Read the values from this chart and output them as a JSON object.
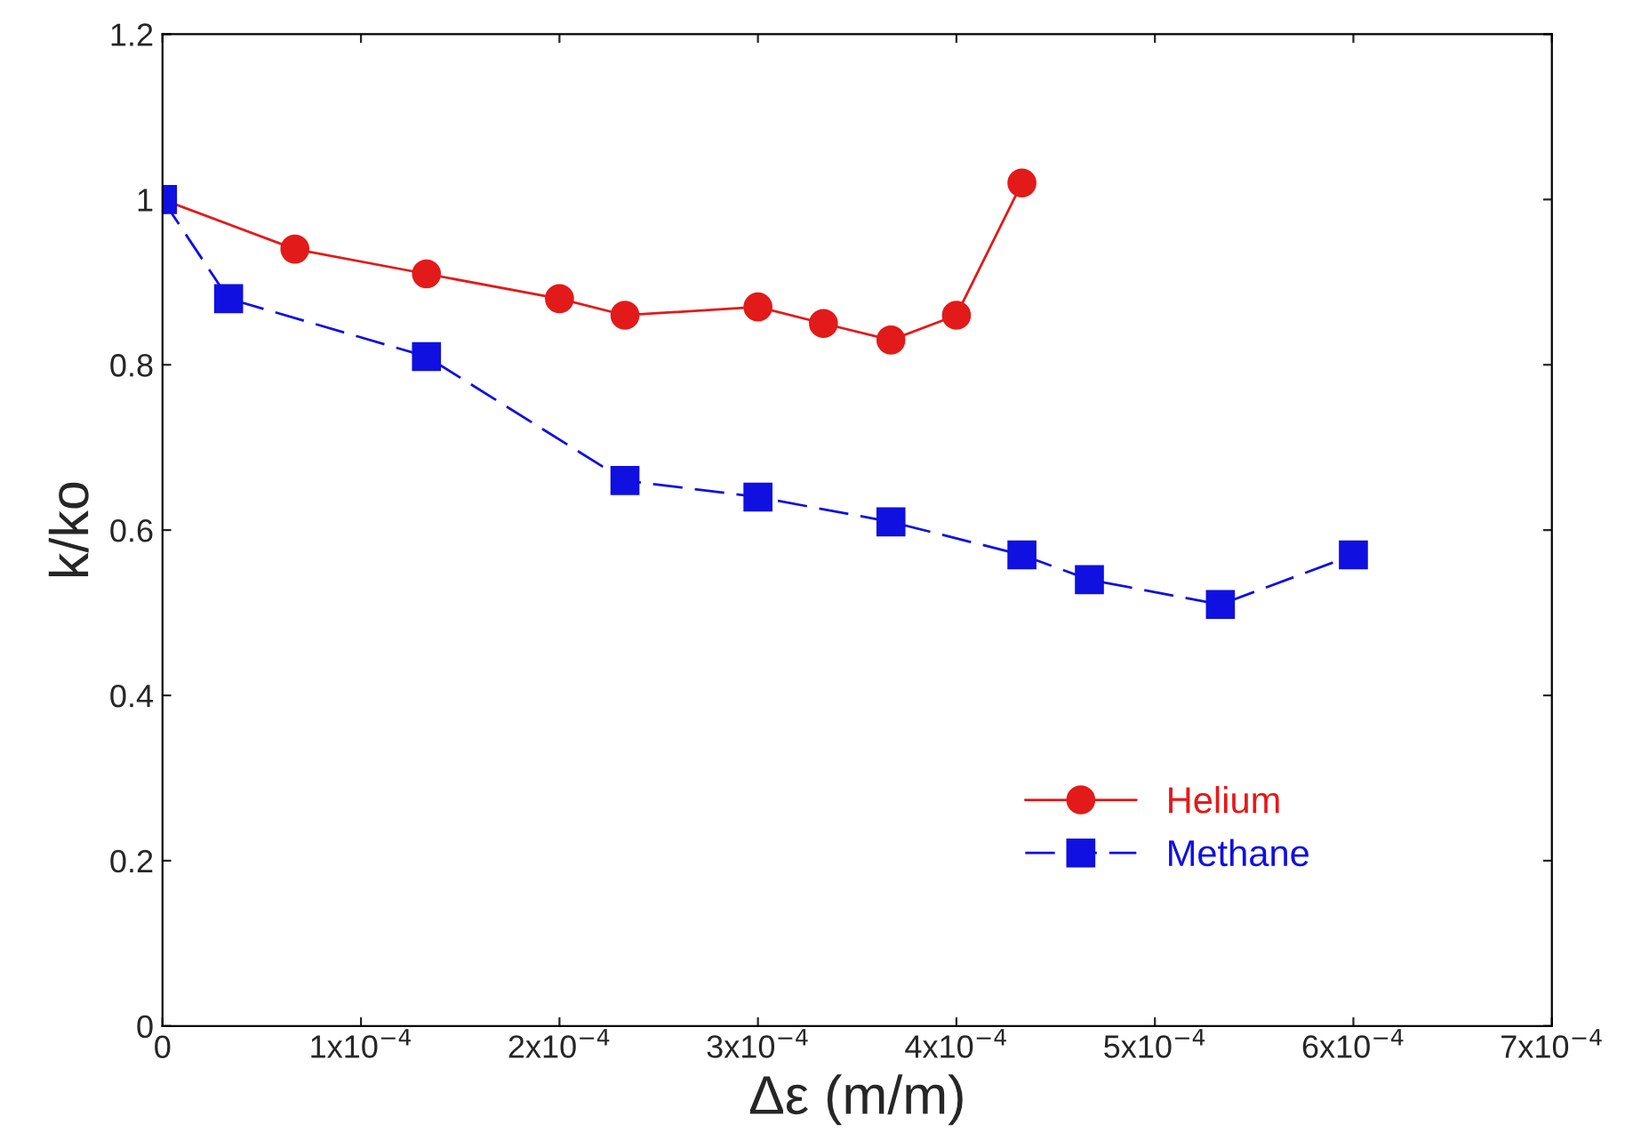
{
  "chart_data": {
    "type": "line",
    "xlabel": "Δε (m/m)",
    "ylabel": "k/ko",
    "xlim": [
      0,
      0.0007
    ],
    "ylim": [
      0,
      1.2
    ],
    "xticks": [
      0,
      {
        "value": 0.0001,
        "label": "1x10$^{−4}$"
      },
      {
        "value": 0.0002,
        "label": "2x10$^{−4}$"
      },
      {
        "value": 0.0003,
        "label": "3x10$^{−4}$"
      },
      {
        "value": 0.0004,
        "label": "4x10$^{−4}$"
      },
      {
        "value": 0.0005,
        "label": "5x10$^{−4}$"
      },
      {
        "value": 0.0006,
        "label": "6x10$^{−4}$"
      },
      {
        "value": 0.0007,
        "label": "7x10$^{−4}$"
      }
    ],
    "yticks": [
      0,
      0.2,
      0.4,
      0.6,
      0.8,
      1,
      1.2
    ],
    "grid": false,
    "legend": "bottom right",
    "series": [
      {
        "name": "Helium",
        "color": "#e31a1a",
        "marker": "circle",
        "line_style": "solid",
        "x": [
          0,
          6.67e-05,
          0.000133,
          0.0002,
          0.000233,
          0.0003,
          0.000333,
          0.000367,
          0.0004,
          0.000433
        ],
        "values": [
          1.0,
          0.94,
          0.91,
          0.88,
          0.86,
          0.87,
          0.85,
          0.83,
          0.86,
          1.02
        ]
      },
      {
        "name": "Methane",
        "color": "#1010e0",
        "marker": "square",
        "line_style": "dashed",
        "x": [
          0,
          3.33e-05,
          0.000133,
          0.000233,
          0.0003,
          0.000367,
          0.000433,
          0.000467,
          0.000533,
          0.0006
        ],
        "values": [
          1.0,
          0.88,
          0.81,
          0.66,
          0.64,
          0.61,
          0.57,
          0.54,
          0.51,
          0.57
        ]
      }
    ]
  }
}
